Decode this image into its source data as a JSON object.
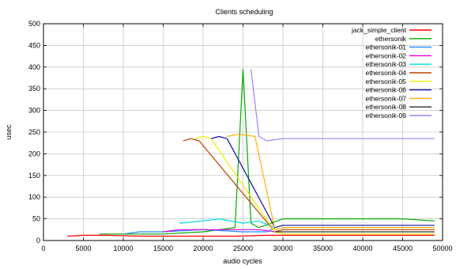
{
  "chart_data": {
    "type": "line",
    "title": "Clients scheduling",
    "xlabel": "audio cycles",
    "ylabel": "usec",
    "xlim": [
      0,
      50000
    ],
    "ylim": [
      0,
      500
    ],
    "xticks": [
      0,
      5000,
      10000,
      15000,
      20000,
      25000,
      30000,
      35000,
      40000,
      45000,
      50000
    ],
    "yticks": [
      0,
      50,
      100,
      150,
      200,
      250,
      300,
      350,
      400,
      450,
      500
    ],
    "grid": true,
    "legend_position": "top-right",
    "series": [
      {
        "name": "jack_simple_client",
        "color": "#ff0000",
        "x": [
          3000,
          5000,
          8000,
          12000,
          16000,
          20000,
          24000,
          28000,
          30000,
          35000,
          40000,
          45000,
          49000
        ],
        "y": [
          10,
          12,
          12,
          10,
          10,
          10,
          10,
          12,
          12,
          12,
          12,
          12,
          12
        ]
      },
      {
        "name": "ethersonik",
        "color": "#00aa00",
        "x": [
          7000,
          10000,
          15000,
          20000,
          24000,
          25000,
          26000,
          27000,
          30000,
          35000,
          40000,
          45000,
          49000
        ],
        "y": [
          15,
          15,
          15,
          20,
          30,
          395,
          40,
          30,
          50,
          50,
          50,
          50,
          45
        ]
      },
      {
        "name": "ethersonik-01",
        "color": "#1f8fff",
        "x": [
          10000,
          12000,
          15000,
          20000,
          25000,
          28000,
          29000
        ],
        "y": [
          15,
          20,
          20,
          25,
          20,
          20,
          30
        ]
      },
      {
        "name": "ethersonik-02",
        "color": "#dd00dd",
        "x": [
          15000,
          17000,
          20000,
          24000,
          27000,
          29000
        ],
        "y": [
          20,
          25,
          25,
          25,
          25,
          20
        ]
      },
      {
        "name": "ethersonik-03",
        "color": "#00dddd",
        "x": [
          17000,
          20000,
          22000,
          25000,
          27000,
          29000
        ],
        "y": [
          40,
          45,
          50,
          40,
          45,
          30
        ]
      },
      {
        "name": "ethersonik-04",
        "color": "#c04000",
        "x": [
          17500,
          18500,
          19500,
          29000,
          30000,
          35000,
          40000,
          45000,
          49000
        ],
        "y": [
          230,
          235,
          230,
          20,
          25,
          25,
          25,
          25,
          25
        ]
      },
      {
        "name": "ethersonik-05",
        "color": "#eeee00",
        "x": [
          19000,
          20000,
          21000,
          29000,
          30000,
          35000,
          40000,
          45000,
          49000
        ],
        "y": [
          235,
          240,
          235,
          20,
          15,
          15,
          15,
          15,
          15
        ]
      },
      {
        "name": "ethersonik-06",
        "color": "#1010a0",
        "x": [
          21000,
          22000,
          23000,
          29000,
          30000,
          35000,
          40000,
          45000,
          49000
        ],
        "y": [
          235,
          240,
          235,
          30,
          35,
          35,
          35,
          35,
          35
        ]
      },
      {
        "name": "ethersonik-07",
        "color": "#ffb000",
        "x": [
          23000,
          24500,
          26500,
          29000,
          30000,
          35000,
          40000,
          45000,
          49000
        ],
        "y": [
          240,
          245,
          240,
          25,
          30,
          30,
          30,
          30,
          30
        ]
      },
      {
        "name": "ethersonik-08",
        "color": "#303030",
        "x": [
          29000,
          30000,
          35000,
          40000,
          45000,
          49000
        ],
        "y": [
          20,
          20,
          20,
          20,
          20,
          20
        ]
      },
      {
        "name": "ethersonik-09",
        "color": "#a080ff",
        "x": [
          26000,
          27000,
          28000,
          30000,
          35000,
          40000,
          45000,
          49000
        ],
        "y": [
          395,
          240,
          230,
          235,
          235,
          235,
          235,
          235
        ]
      }
    ]
  }
}
